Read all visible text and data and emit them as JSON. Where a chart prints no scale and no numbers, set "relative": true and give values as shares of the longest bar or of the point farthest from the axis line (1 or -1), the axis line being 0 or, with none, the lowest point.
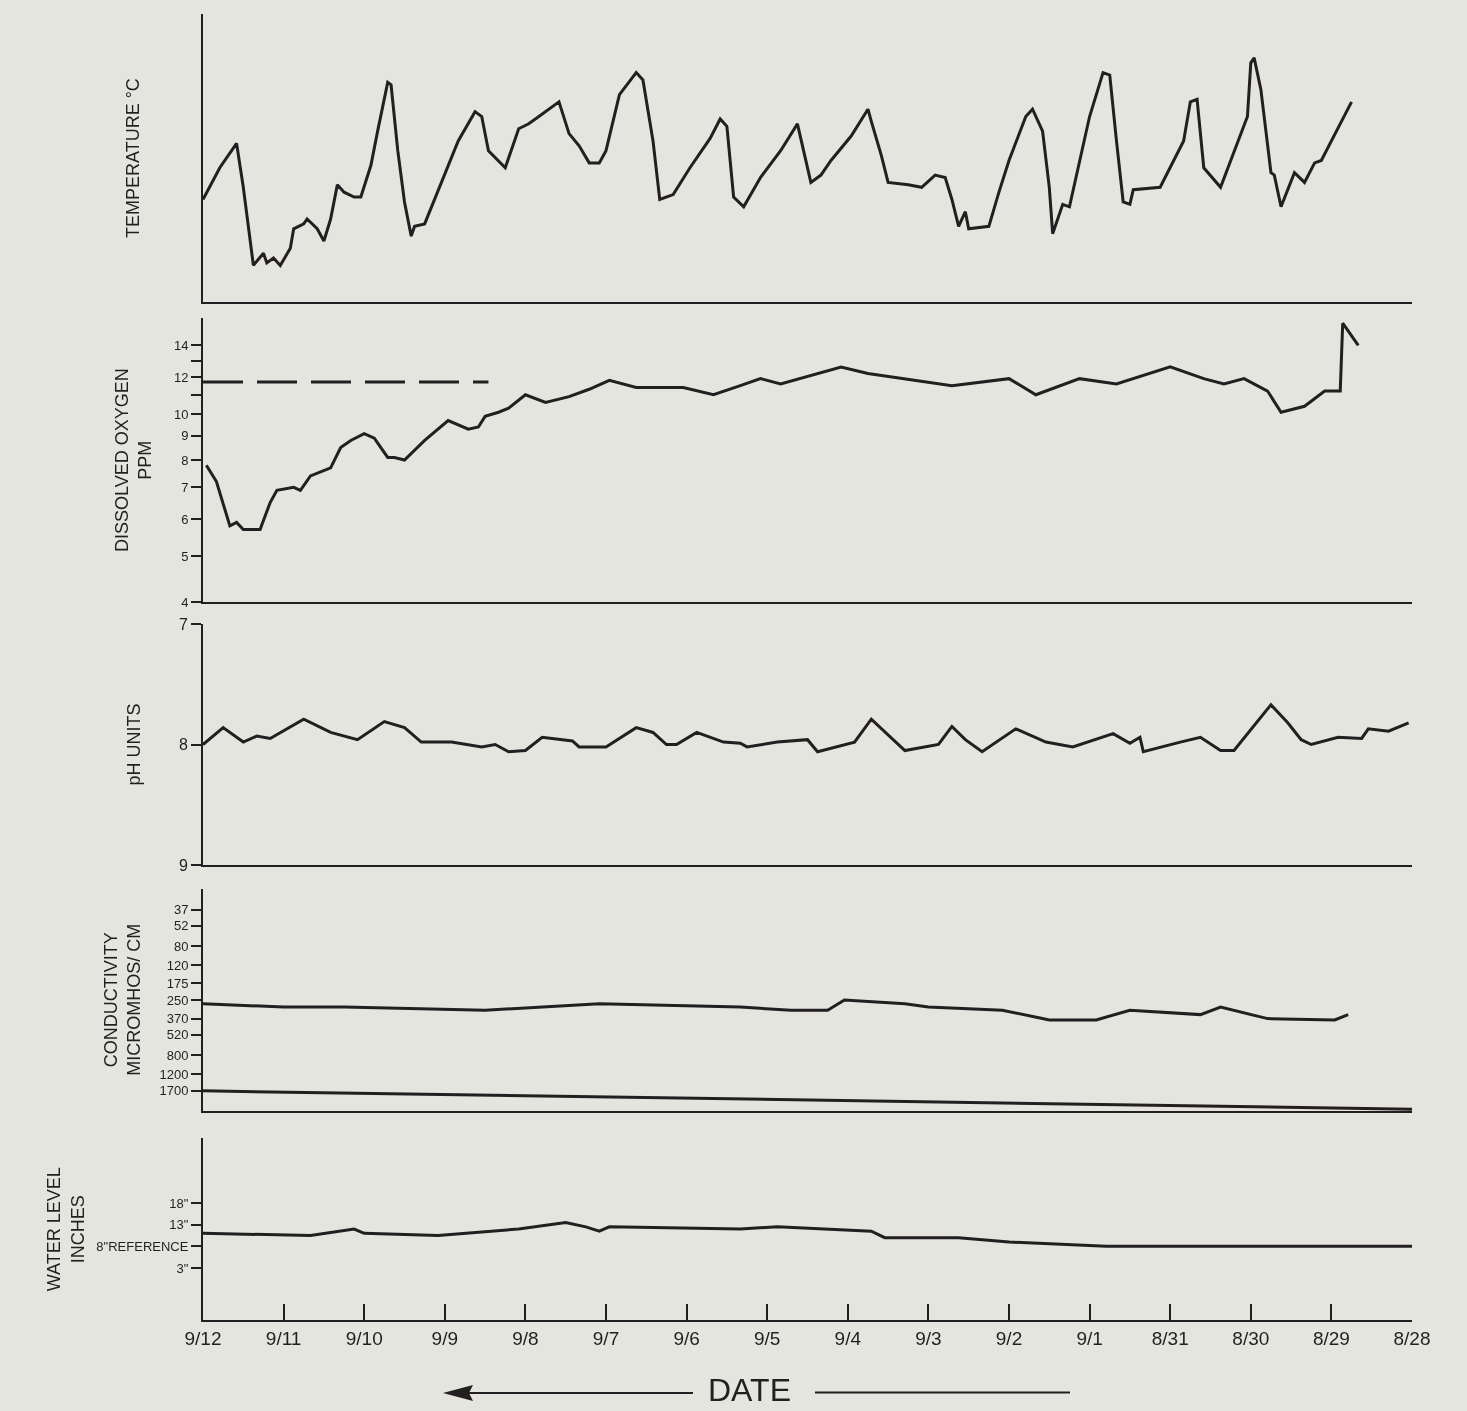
{
  "chart_data": [
    {
      "type": "line",
      "ylabel": "TEMPERATURE °C",
      "relative": true,
      "xlim": [
        "--09-12",
        "--08-28"
      ],
      "tick_labels": false,
      "x": [
        "--09-12T00:00",
        "--09-11T19:00",
        "--09-11T14:00",
        "--09-11T12:00",
        "--09-11T09:00",
        "--09-11T06:00",
        "--09-11T05:00",
        "--09-11T03:00",
        "--09-11T01:00",
        "--09-10T22:00",
        "--09-10T21:00",
        "--09-10T18:00",
        "--09-10T17:00",
        "--09-10T14:00",
        "--09-10T12:00",
        "--09-10T10:00",
        "--09-10T08:00",
        "--09-10T06:00",
        "--09-10T03:00",
        "--09-10T01:00",
        "--09-09T22:00",
        "--09-09T20:00",
        "--09-09T17:00",
        "--09-09T16:00",
        "--09-09T14:00",
        "--09-09T12:00",
        "--09-09T10:00",
        "--09-09T09:00",
        "--09-09T06:00",
        "--09-09T01:00",
        "--09-08T20:00",
        "--09-08T15:00",
        "--09-08T13:00",
        "--09-08T11:00",
        "--09-08T06:00",
        "--09-08T02:00",
        "--09-07T23:00",
        "--09-07T20:00",
        "--09-07T14:00",
        "--09-07T11:00",
        "--09-07T08:00",
        "--09-07T05:00",
        "--09-07T02:00",
        "--09-07T00:00",
        "--09-06T20:00",
        "--09-06T15:00",
        "--09-06T13:00",
        "--09-06T10:00",
        "--09-06T08:00",
        "--09-06T04:00",
        "--09-05T23:00",
        "--09-05T17:00",
        "--09-05T14:00",
        "--09-05T12:00",
        "--09-05T10:00",
        "--09-05T07:00",
        "--09-05T02:00",
        "--09-04T20:00",
        "--09-04T15:00",
        "--09-04T11:00",
        "--09-04T08:00",
        "--09-04T05:00",
        "--09-03T23:00",
        "--09-03T18:00",
        "--09-03T17:00",
        "--09-03T14:00",
        "--09-03T12:00",
        "--09-03T06:00",
        "--09-03T02:00",
        "--09-02T22:00",
        "--09-02T19:00",
        "--09-02T17:00",
        "--09-02T15:00",
        "--09-02T13:00",
        "--09-02T12:00",
        "--09-02T06:00",
        "--09-02T03:00",
        "--09-02T00:00",
        "--09-01T19:00",
        "--09-01T17:00",
        "--09-01T14:00",
        "--09-01T12:00",
        "--09-01T11:00",
        "--09-01T08:00",
        "--09-01T06:00",
        "--09-01T00:00",
        "--08-31T20:00",
        "--08-31T18:00",
        "--08-31T16:00",
        "--08-31T14:00",
        "--08-31T12:00",
        "--08-31T11:00",
        "--08-31T03:00",
        "--08-30T20:00",
        "--08-30T18:00",
        "--08-30T16:00",
        "--08-30T14:00",
        "--08-30T09:00",
        "--08-30T01:00",
        "--08-30T00:00",
        "--08-29T23:00",
        "--08-29T21:00",
        "--08-29T18:00",
        "--08-29T17:00",
        "--08-29T15:00",
        "--08-29T11:00",
        "--08-29T08:00",
        "--08-29T05:00",
        "--08-29T03:00",
        "--08-28T18:00"
      ],
      "values": [
        0.42,
        0.55,
        0.65,
        0.47,
        0.15,
        0.2,
        0.16,
        0.18,
        0.15,
        0.22,
        0.3,
        0.32,
        0.34,
        0.3,
        0.25,
        0.34,
        0.48,
        0.45,
        0.43,
        0.43,
        0.56,
        0.7,
        0.9,
        0.89,
        0.62,
        0.41,
        0.27,
        0.31,
        0.32,
        0.49,
        0.66,
        0.78,
        0.76,
        0.62,
        0.55,
        0.71,
        0.73,
        0.76,
        0.82,
        0.69,
        0.64,
        0.57,
        0.57,
        0.62,
        0.85,
        0.94,
        0.91,
        0.66,
        0.42,
        0.44,
        0.55,
        0.67,
        0.75,
        0.72,
        0.43,
        0.39,
        0.51,
        0.62,
        0.73,
        0.49,
        0.52,
        0.58,
        0.68,
        0.79,
        0.74,
        0.6,
        0.49,
        0.48,
        0.47,
        0.52,
        0.51,
        0.42,
        0.31,
        0.37,
        0.3,
        0.31,
        0.45,
        0.58,
        0.76,
        0.79,
        0.7,
        0.47,
        0.28,
        0.4,
        0.39,
        0.76,
        0.94,
        0.93,
        0.66,
        0.41,
        0.4,
        0.46,
        0.47,
        0.66,
        0.82,
        0.83,
        0.55,
        0.47,
        0.76,
        0.98,
        1.0,
        0.87,
        0.53,
        0.52,
        0.39,
        0.53,
        0.49,
        0.57,
        0.58,
        0.82
      ],
      "color": "#231f20"
    },
    {
      "type": "line",
      "ylabel": "DISSOLVED OXYGEN\nPPM",
      "log": true,
      "xlim": [
        "--09-12",
        "--08-28"
      ],
      "ylim": [
        4,
        16
      ],
      "tick_labels": "y",
      "yticks": [
        4,
        5,
        6,
        7,
        8,
        9,
        10,
        {
          "value": 11,
          "label": null
        },
        12,
        {
          "value": 13,
          "label": null
        },
        14
      ],
      "series": [
        {
          "color": "#231f20",
          "x": [
            "--09-11T23:00",
            "--09-11T20:00",
            "--09-11T16:00",
            "--09-11T14:00",
            "--09-11T12:00",
            "--09-11T07:00",
            "--09-11T04:00",
            "--09-11T02:00",
            "--09-10T21:00",
            "--09-10T19:00",
            "--09-10T16:00",
            "--09-10T10:00",
            "--09-10T07:00",
            "--09-10T04:00",
            "--09-10T00:00",
            "--09-09T21:00",
            "--09-09T17:00",
            "--09-09T15:00",
            "--09-09T12:00",
            "--09-09T06:00",
            "--09-08T23:00",
            "--09-08T17:00",
            "--09-08T14:00",
            "--09-08T12:00",
            "--09-08T08:00",
            "--09-08T05:00",
            "--09-08T00:00",
            "--09-07T18:00",
            "--09-07T11:00",
            "--09-07T05:00",
            "--09-06T23:00",
            "--09-06T15:00",
            "--09-06T01:00",
            "--09-05T16:00",
            "--09-05T08:00",
            "--09-05T02:00",
            "--09-04T20:00",
            "--09-04T02:00",
            "--09-03T18:00",
            "--09-02T17:00",
            "--09-02T00:00",
            "--09-01T16:00",
            "--09-01T03:00",
            "--08-31T16:00",
            "--08-31T00:00",
            "--08-30T14:00",
            "--08-30T08:00",
            "--08-30T02:00",
            "--08-29T19:00",
            "--08-29T15:00",
            "--08-29T08:00",
            "--08-29T02:00",
            "--08-28T21:22",
            "--08-28T20:38",
            "--08-28T16:00"
          ],
          "values": [
            7.8,
            7.2,
            5.8,
            5.9,
            5.7,
            5.7,
            6.5,
            6.9,
            7.0,
            6.9,
            7.4,
            7.7,
            8.5,
            8.8,
            9.1,
            8.9,
            8.1,
            8.1,
            8.0,
            8.8,
            9.7,
            9.3,
            9.4,
            9.9,
            10.1,
            10.3,
            11.0,
            10.6,
            10.9,
            11.3,
            11.8,
            11.4,
            11.4,
            11.0,
            11.5,
            11.9,
            11.6,
            12.6,
            12.2,
            11.5,
            11.9,
            11.0,
            11.9,
            11.6,
            12.6,
            11.9,
            11.6,
            11.9,
            11.2,
            10.1,
            10.4,
            11.2,
            11.2,
            15.6,
            14.0
          ]
        },
        {
          "color": "#231f20",
          "line_style": "dashed",
          "x": [
            "--09-12T00:00",
            "--09-08T11:00"
          ],
          "values": [
            11.7,
            11.7
          ]
        }
      ]
    },
    {
      "type": "line",
      "ylabel": "pH UNITS",
      "xlim": [
        "--09-12",
        "--08-28"
      ],
      "ylim": [
        9,
        7
      ],
      "yticks": [
        7,
        8,
        9
      ],
      "tick_labels": "y",
      "x": [
        "--09-12T00:00",
        "--09-11T18:00",
        "--09-11T12:00",
        "--09-11T08:00",
        "--09-11T04:00",
        "--09-10T18:00",
        "--09-10T10:00",
        "--09-10T02:00",
        "--09-09T18:00",
        "--09-09T12:00",
        "--09-09T07:00",
        "--09-08T22:00",
        "--09-08T13:00",
        "--09-08T09:00",
        "--09-08T05:00",
        "--09-08T00:00",
        "--09-07T19:00",
        "--09-07T10:00",
        "--09-07T08:00",
        "--09-07T00:00",
        "--09-06T15:00",
        "--09-06T10:00",
        "--09-06T06:00",
        "--09-06T03:00",
        "--09-05T21:00",
        "--09-05T13:00",
        "--09-05T08:00",
        "--09-05T06:00",
        "--09-04T21:00",
        "--09-04T12:00",
        "--09-04T09:00",
        "--09-03T22:00",
        "--09-03T17:00",
        "--09-03T07:00",
        "--09-02T21:00",
        "--09-02T17:00",
        "--09-02T13:00",
        "--09-02T08:00",
        "--09-01T22:00",
        "--09-01T13:00",
        "--09-01T05:00",
        "--08-31T17:00",
        "--08-31T12:00",
        "--08-31T09:00",
        "--08-31T08:00",
        "--08-30T21:00",
        "--08-30T15:00",
        "--08-30T09:00",
        "--08-30T05:00",
        "--08-29T18:00",
        "--08-29T13:00",
        "--08-29T09:00",
        "--08-29T06:00",
        "--08-28T22:00",
        "--08-28T15:00",
        "--08-28T13:00",
        "--08-28T07:00",
        "--08-28T01:00"
      ],
      "values": [
        8.0,
        7.86,
        7.98,
        7.93,
        7.95,
        7.79,
        7.9,
        7.96,
        7.81,
        7.86,
        7.98,
        7.98,
        8.02,
        8.0,
        8.06,
        8.05,
        7.94,
        7.97,
        8.02,
        8.02,
        7.86,
        7.9,
        8.0,
        8.0,
        7.9,
        7.98,
        7.99,
        8.02,
        7.98,
        7.96,
        8.06,
        7.98,
        7.79,
        8.05,
        8.0,
        7.85,
        7.96,
        8.06,
        7.87,
        7.98,
        8.02,
        7.91,
        7.99,
        7.94,
        8.06,
        7.98,
        7.94,
        8.05,
        8.05,
        7.67,
        7.82,
        7.96,
        8.0,
        7.94,
        7.95,
        7.87,
        7.89,
        7.82
      ],
      "color": "#231f20"
    },
    {
      "type": "line",
      "ylabel": "CONDUCTIVITY\nMICROMHOS/ CM",
      "log": true,
      "xlim": [
        "--09-12",
        "--08-28"
      ],
      "ylim": [
        2600,
        24
      ],
      "tick_labels": "y",
      "yticks": [
        37,
        52,
        80,
        120,
        175,
        250,
        370,
        520,
        800,
        1200,
        1700
      ],
      "series": [
        {
          "color": "#231f20",
          "x": [
            "--09-12T00:00",
            "--09-11T00:00",
            "--09-10T06:00",
            "--09-08T12:00",
            "--09-07T02:00",
            "--09-05T08:00",
            "--09-04T17:00",
            "--09-04T06:00",
            "--09-04T01:00",
            "--09-03T07:00",
            "--09-03T00:00",
            "--09-02T02:00",
            "--09-01T12:00",
            "--08-31T22:00",
            "--08-31T12:00",
            "--08-30T15:00",
            "--08-30T09:00",
            "--08-29T19:00",
            "--08-28T23:00",
            "--08-28T19:00"
          ],
          "values": [
            270,
            290,
            290,
            310,
            270,
            290,
            310,
            310,
            250,
            270,
            290,
            310,
            380,
            380,
            310,
            340,
            290,
            370,
            380,
            340
          ]
        },
        {
          "color": "#231f20",
          "x": [
            "--09-12",
            "--08-28"
          ],
          "values": [
            1700,
            2500
          ]
        }
      ]
    },
    {
      "type": "line",
      "ylabel": "WATER LEVEL\nINCHES",
      "xlabel": "DATE",
      "xlim": [
        "--09-12",
        "--08-28"
      ],
      "ylim": [
        -9,
        33
      ],
      "yticks": [
        {
          "value": 18,
          "label": "18\""
        },
        {
          "value": 13,
          "label": "13\""
        },
        {
          "value": 8,
          "label": "8\"REFERENCE"
        },
        {
          "value": 3,
          "label": "3\""
        }
      ],
      "xticks": [
        {
          "value": "--09-12",
          "label": "9/12"
        },
        {
          "value": "--09-11",
          "label": "9/11"
        },
        {
          "value": "--09-10",
          "label": "9/10"
        },
        {
          "value": "--09-09",
          "label": "9/9"
        },
        {
          "value": "--09-08",
          "label": "9/8"
        },
        {
          "value": "--09-07",
          "label": "9/7"
        },
        {
          "value": "--09-06",
          "label": "9/6"
        },
        {
          "value": "--09-05",
          "label": "9/5"
        },
        {
          "value": "--09-04",
          "label": "9/4"
        },
        {
          "value": "--09-03",
          "label": "9/3"
        },
        {
          "value": "--09-02",
          "label": "9/2"
        },
        {
          "value": "--09-01",
          "label": "9/1"
        },
        {
          "value": "--08-31",
          "label": "8/31"
        },
        {
          "value": "--08-30",
          "label": "8/30"
        },
        {
          "value": "--08-29",
          "label": "8/29"
        },
        {
          "value": "--08-28",
          "label": "8/28"
        }
      ],
      "x": [
        "--09-12T00:00",
        "--09-10T16:00",
        "--09-10T03:00",
        "--09-10T00:00",
        "--09-09T02:00",
        "--09-08T02:00",
        "--09-07T12:00",
        "--09-07T06:00",
        "--09-07T02:00",
        "--09-06T23:00",
        "--09-05T08:00",
        "--09-04T21:00",
        "--09-03T17:00",
        "--09-03T13:00",
        "--09-02T15:00",
        "--09-02T00:00",
        "--08-31T19:00",
        "--08-30T01:00",
        "--08-28T00:00"
      ],
      "values": [
        11,
        10.5,
        12,
        11,
        10.5,
        12,
        13.5,
        12.5,
        11.5,
        12.5,
        12,
        12.5,
        11.5,
        10,
        10,
        9,
        8,
        8,
        8
      ],
      "color": "#231f20"
    }
  ]
}
